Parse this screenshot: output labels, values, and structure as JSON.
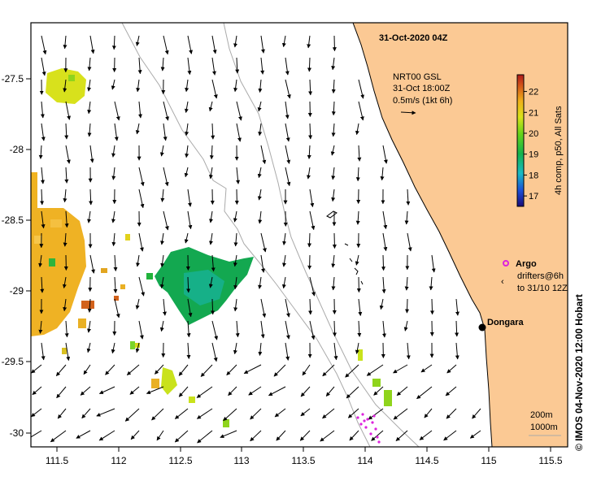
{
  "title": "31-Oct-2020 04Z",
  "scale_block": {
    "line1": "NRT00 GSL",
    "line2": "31-Oct 18:00Z",
    "line3": "0.5m/s (1kt 6h)"
  },
  "colorbar": {
    "label": "4h comp, p50, All Sats",
    "ticks": [
      "22",
      "21",
      "20",
      "19",
      "18",
      "17"
    ],
    "range": [
      16.5,
      22.8
    ],
    "colors": [
      "#1a0a78",
      "#1d4fd6",
      "#1ab9c4",
      "#14b34c",
      "#66d41a",
      "#d9e21a",
      "#f0b01a",
      "#d2541a",
      "#b01a1a"
    ]
  },
  "legend": {
    "argo_label": "Argo",
    "drifters_line1": "drifters@6h",
    "drifters_line2": "to 31/10 12Z"
  },
  "place": {
    "name": "Dongara"
  },
  "depth_legend": {
    "line1": "200m",
    "line2": "1000m"
  },
  "axes": {
    "x_ticks": [
      "111.5",
      "112",
      "112.5",
      "113",
      "113.5",
      "114",
      "114.5",
      "115",
      "115.5"
    ],
    "y_ticks": [
      "-27.5",
      "-28",
      "-28.5",
      "-29",
      "-29.5",
      "-30"
    ]
  },
  "credit": "© IMOS 04-Nov-2020 12:00 Hobart",
  "colors": {
    "land": "#fbc994",
    "coast": "#000000",
    "bathy": "#aaaaaa",
    "argo": "#dd22dd"
  }
}
